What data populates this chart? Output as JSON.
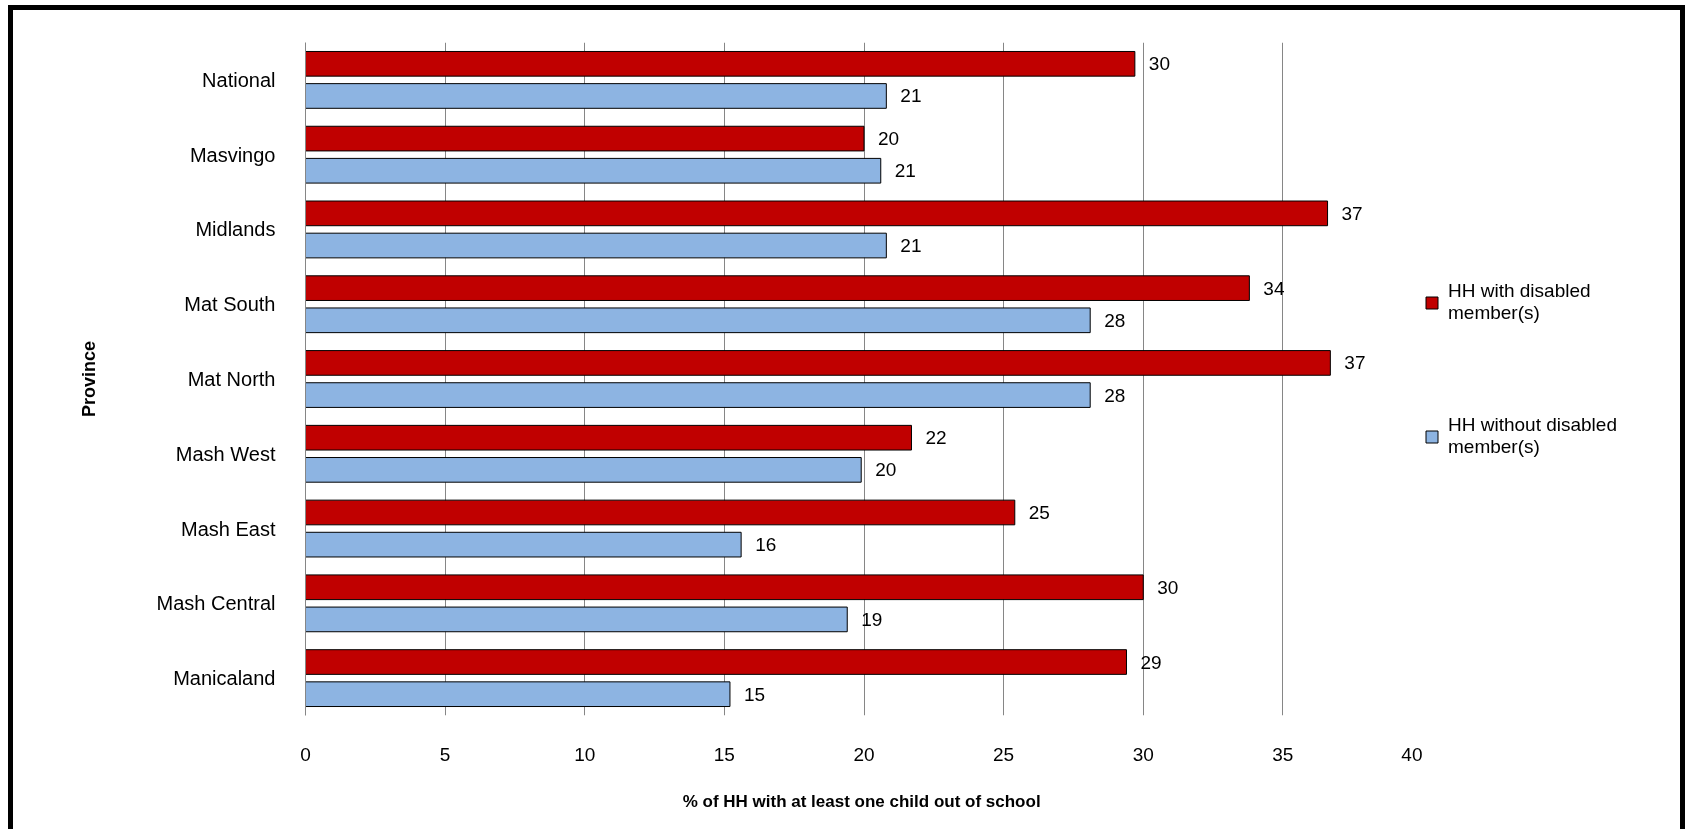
{
  "chart_data": {
    "type": "bar",
    "orientation": "horizontal",
    "xlabel": "% of HH with  at least one child out of school",
    "ylabel": "Province",
    "categories": [
      "National",
      "Masvingo",
      "Midlands",
      "Mat South",
      "Mat North",
      "Mash West",
      "Mash East",
      "Mash Central",
      "Manicaland"
    ],
    "series": [
      {
        "name": "HH with disabled member(s)",
        "color": "#c00000",
        "values": [
          29.7,
          20.0,
          36.6,
          33.8,
          36.7,
          21.7,
          25.4,
          30.0,
          29.4
        ],
        "value_labels": [
          "30",
          "20",
          "37",
          "34",
          "37",
          "22",
          "25",
          "30",
          "29"
        ]
      },
      {
        "name": "HH without disabled member(s)",
        "color": "#8db4e2",
        "values": [
          20.8,
          20.6,
          20.8,
          28.1,
          28.1,
          19.9,
          15.6,
          19.4,
          15.2
        ],
        "value_labels": [
          "21",
          "21",
          "21",
          "28",
          "28",
          "20",
          "16",
          "19",
          "15"
        ]
      }
    ],
    "xlim": [
      0,
      40
    ],
    "xticks": [
      0,
      5,
      10,
      15,
      20,
      25,
      30,
      35,
      40
    ],
    "grid": "x",
    "legend": "right"
  }
}
